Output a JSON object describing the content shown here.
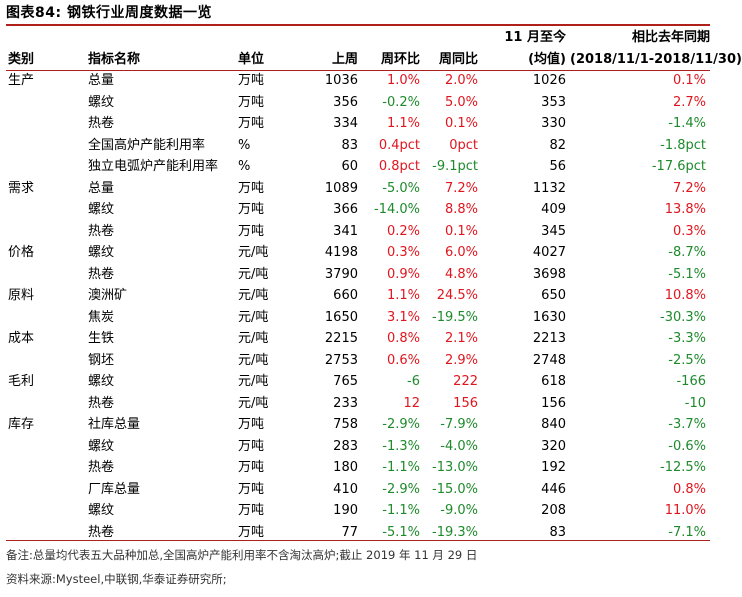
{
  "title": "图表84:   钢铁行业周度数据一览",
  "colors": {
    "positive": "#e0161f",
    "negative": "#1e8a2c",
    "rule": "#b0201a"
  },
  "header": {
    "row1_col7": "11 月至今",
    "row1_col8": "相比去年同期",
    "category": "类别",
    "name": "指标名称",
    "unit": "单位",
    "last_week": "上周",
    "wow": "周环比",
    "yoy": "周同比",
    "row2_col7": "(均值)",
    "row2_col8": "(2018/11/1-2018/11/30)"
  },
  "rows": [
    {
      "cat": "生产",
      "name": "总量",
      "indent": 1,
      "unit": "万吨",
      "last": "1036",
      "wow": "1.0%",
      "wow_c": "red",
      "yoy": "2.0%",
      "yoy_c": "red",
      "avg": "1026",
      "ly": "0.1%",
      "ly_c": "red"
    },
    {
      "cat": "",
      "name": "螺纹",
      "indent": 2,
      "unit": "万吨",
      "last": "356",
      "wow": "-0.2%",
      "wow_c": "green",
      "yoy": "5.0%",
      "yoy_c": "red",
      "avg": "353",
      "ly": "2.7%",
      "ly_c": "red"
    },
    {
      "cat": "",
      "name": "热卷",
      "indent": 2,
      "unit": "万吨",
      "last": "334",
      "wow": "1.1%",
      "wow_c": "red",
      "yoy": "0.1%",
      "yoy_c": "red",
      "avg": "330",
      "ly": "-1.4%",
      "ly_c": "green"
    },
    {
      "cat": "",
      "name": "全国高炉产能利用率",
      "indent": 1,
      "unit": "%",
      "last": "83",
      "wow": "0.4pct",
      "wow_c": "red",
      "yoy": "0pct",
      "yoy_c": "red",
      "avg": "82",
      "ly": "-1.8pct",
      "ly_c": "green"
    },
    {
      "cat": "",
      "name": "独立电弧炉产能利用率",
      "indent": 1,
      "unit": "%",
      "last": "60",
      "wow": "0.8pct",
      "wow_c": "red",
      "yoy": "-9.1pct",
      "yoy_c": "green",
      "avg": "56",
      "ly": "-17.6pct",
      "ly_c": "green"
    },
    {
      "cat": "需求",
      "name": "总量",
      "indent": 1,
      "unit": "万吨",
      "last": "1089",
      "wow": "-5.0%",
      "wow_c": "green",
      "yoy": "7.2%",
      "yoy_c": "red",
      "avg": "1132",
      "ly": "7.2%",
      "ly_c": "red"
    },
    {
      "cat": "",
      "name": "螺纹",
      "indent": 2,
      "unit": "万吨",
      "last": "366",
      "wow": "-14.0%",
      "wow_c": "green",
      "yoy": "8.8%",
      "yoy_c": "red",
      "avg": "409",
      "ly": "13.8%",
      "ly_c": "red"
    },
    {
      "cat": "",
      "name": "热卷",
      "indent": 2,
      "unit": "万吨",
      "last": "341",
      "wow": "0.2%",
      "wow_c": "red",
      "yoy": "0.1%",
      "yoy_c": "red",
      "avg": "345",
      "ly": "0.3%",
      "ly_c": "red"
    },
    {
      "cat": "价格",
      "name": "螺纹",
      "indent": 1,
      "unit": "元/吨",
      "last": "4198",
      "wow": "0.3%",
      "wow_c": "red",
      "yoy": "6.0%",
      "yoy_c": "red",
      "avg": "4027",
      "ly": "-8.7%",
      "ly_c": "green"
    },
    {
      "cat": "",
      "name": "热卷",
      "indent": 1,
      "unit": "元/吨",
      "last": "3790",
      "wow": "0.9%",
      "wow_c": "red",
      "yoy": "4.8%",
      "yoy_c": "red",
      "avg": "3698",
      "ly": "-5.1%",
      "ly_c": "green"
    },
    {
      "cat": "原料",
      "name": "澳洲矿",
      "indent": 1,
      "unit": "元/吨",
      "last": "660",
      "wow": "1.1%",
      "wow_c": "red",
      "yoy": "24.5%",
      "yoy_c": "red",
      "avg": "650",
      "ly": "10.8%",
      "ly_c": "red"
    },
    {
      "cat": "",
      "name": "焦炭",
      "indent": 1,
      "unit": "元/吨",
      "last": "1650",
      "wow": "3.1%",
      "wow_c": "red",
      "yoy": "-19.5%",
      "yoy_c": "green",
      "avg": "1630",
      "ly": "-30.3%",
      "ly_c": "green"
    },
    {
      "cat": "成本",
      "name": "生铁",
      "indent": 1,
      "unit": "元/吨",
      "last": "2215",
      "wow": "0.8%",
      "wow_c": "red",
      "yoy": "2.1%",
      "yoy_c": "red",
      "avg": "2213",
      "ly": "-3.3%",
      "ly_c": "green"
    },
    {
      "cat": "",
      "name": "钢坯",
      "indent": 1,
      "unit": "元/吨",
      "last": "2753",
      "wow": "0.6%",
      "wow_c": "red",
      "yoy": "2.9%",
      "yoy_c": "red",
      "avg": "2748",
      "ly": "-2.5%",
      "ly_c": "green"
    },
    {
      "cat": "毛利",
      "name": "螺纹",
      "indent": 1,
      "unit": "元/吨",
      "last": "765",
      "wow": "-6",
      "wow_c": "green",
      "yoy": "222",
      "yoy_c": "red",
      "avg": "618",
      "ly": "-166",
      "ly_c": "green"
    },
    {
      "cat": "",
      "name": "热卷",
      "indent": 1,
      "unit": "元/吨",
      "last": "233",
      "wow": "12",
      "wow_c": "red",
      "yoy": "156",
      "yoy_c": "red",
      "avg": "156",
      "ly": "-10",
      "ly_c": "green"
    },
    {
      "cat": "库存",
      "name": "社库总量",
      "indent": 1,
      "unit": "万吨",
      "last": "758",
      "wow": "-2.9%",
      "wow_c": "green",
      "yoy": "-7.9%",
      "yoy_c": "green",
      "avg": "840",
      "ly": "-3.7%",
      "ly_c": "green"
    },
    {
      "cat": "",
      "name": "螺纹",
      "indent": 2,
      "unit": "万吨",
      "last": "283",
      "wow": "-1.3%",
      "wow_c": "green",
      "yoy": "-4.0%",
      "yoy_c": "green",
      "avg": "320",
      "ly": "-0.6%",
      "ly_c": "green"
    },
    {
      "cat": "",
      "name": "热卷",
      "indent": 2,
      "unit": "万吨",
      "last": "180",
      "wow": "-1.1%",
      "wow_c": "green",
      "yoy": "-13.0%",
      "yoy_c": "green",
      "avg": "192",
      "ly": "-12.5%",
      "ly_c": "green"
    },
    {
      "cat": "",
      "name": "厂库总量",
      "indent": 1,
      "unit": "万吨",
      "last": "410",
      "wow": "-2.9%",
      "wow_c": "green",
      "yoy": "-15.0%",
      "yoy_c": "green",
      "avg": "446",
      "ly": "0.8%",
      "ly_c": "red"
    },
    {
      "cat": "",
      "name": "螺纹",
      "indent": 2,
      "unit": "万吨",
      "last": "190",
      "wow": "-1.1%",
      "wow_c": "green",
      "yoy": "-9.0%",
      "yoy_c": "green",
      "avg": "208",
      "ly": "11.0%",
      "ly_c": "red"
    },
    {
      "cat": "",
      "name": "热卷",
      "indent": 2,
      "unit": "万吨",
      "last": "77",
      "wow": "-5.1%",
      "wow_c": "green",
      "yoy": "-19.3%",
      "yoy_c": "green",
      "avg": "83",
      "ly": "-7.1%",
      "ly_c": "green"
    }
  ],
  "footnote": "备注:总量均代表五大品种加总,全国高炉产能利用率不含淘汰高炉;截止 2019 年 11 月 29 日",
  "source": "资料来源:Mysteel,中联钢,华泰证券研究所;"
}
